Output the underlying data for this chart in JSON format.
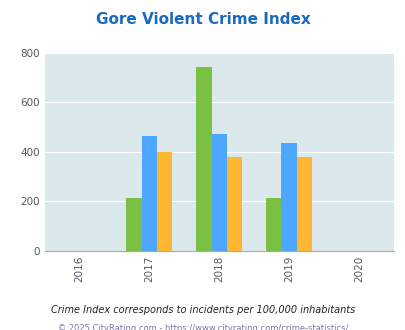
{
  "title": "Gore Violent Crime Index",
  "years": [
    2016,
    2017,
    2018,
    2019,
    2020
  ],
  "data": {
    "Gore": [
      null,
      214,
      744,
      214,
      null
    ],
    "Oklahoma": [
      null,
      462,
      472,
      435,
      null
    ],
    "National": [
      null,
      399,
      381,
      381,
      null
    ]
  },
  "colors": {
    "Gore": "#7ac143",
    "Oklahoma": "#4da6ff",
    "National": "#ffb733"
  },
  "ylim": [
    0,
    800
  ],
  "yticks": [
    0,
    200,
    400,
    600,
    800
  ],
  "bar_width": 0.22,
  "plot_bg": "#dce9ec",
  "title_color": "#1a6abf",
  "title_fontsize": 11,
  "footnote1": "Crime Index corresponds to incidents per 100,000 inhabitants",
  "footnote2": "© 2025 CityRating.com - https://www.cityrating.com/crime-statistics/",
  "footnote1_color": "#222222",
  "footnote2_color": "#7777aa"
}
